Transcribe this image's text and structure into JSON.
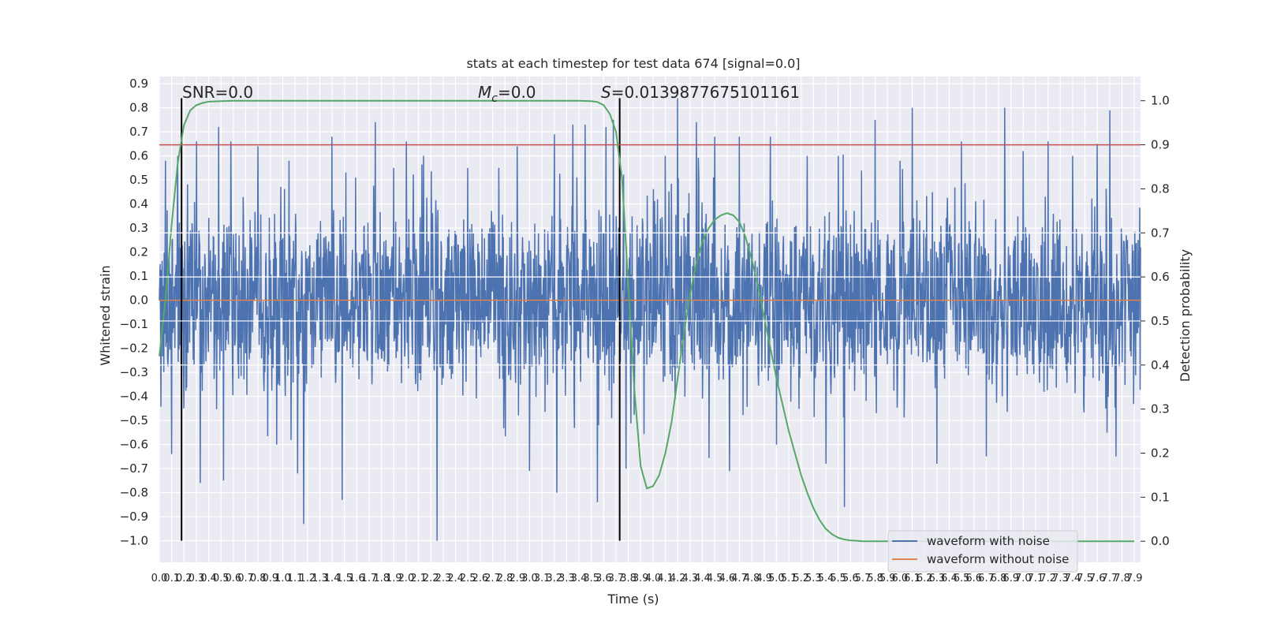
{
  "chart_data": {
    "type": "line",
    "title": "stats at each timestep for test data 674 [signal=0.0]",
    "xlabel": "Time (s)",
    "ylabel": "Whitened strain",
    "y2label": "Detection probability",
    "xlim": [
      0.0,
      7.95
    ],
    "ylim": [
      -1.09,
      0.93
    ],
    "y2lim": [
      -0.048,
      1.055
    ],
    "x_ticks": [
      0.0,
      0.1,
      0.2,
      0.3,
      0.4,
      0.5,
      0.6,
      0.7,
      0.8,
      0.9,
      1.0,
      1.1,
      1.2,
      1.3,
      1.4,
      1.5,
      1.6,
      1.7,
      1.8,
      1.9,
      2.0,
      2.1,
      2.2,
      2.3,
      2.4,
      2.5,
      2.6,
      2.7,
      2.8,
      2.9,
      3.0,
      3.1,
      3.2,
      3.3,
      3.4,
      3.5,
      3.6,
      3.7,
      3.8,
      3.9,
      4.0,
      4.1,
      4.2,
      4.3,
      4.4,
      4.5,
      4.6,
      4.7,
      4.8,
      4.9,
      5.0,
      5.1,
      5.2,
      5.3,
      5.4,
      5.5,
      5.6,
      5.7,
      5.8,
      5.9,
      6.0,
      6.1,
      6.2,
      6.3,
      6.4,
      6.5,
      6.6,
      6.7,
      6.8,
      6.9,
      7.0,
      7.1,
      7.2,
      7.3,
      7.4,
      7.5,
      7.6,
      7.7,
      7.8,
      7.9
    ],
    "x_tick_labels": [
      "0.0",
      "0.1",
      "0.2",
      "0.3",
      "0.4",
      "0.5",
      "0.6",
      "0.7",
      "0.8",
      "0.9",
      "1.0",
      "1.1",
      "1.2",
      "1.3",
      "1.4",
      "1.5",
      "1.6",
      "1.7",
      "1.8",
      "1.9",
      "2.0",
      "2.1",
      "2.2",
      "2.3",
      "2.4",
      "2.5",
      "2.6",
      "2.7",
      "2.8",
      "2.9",
      "3.0",
      "3.1",
      "3.2",
      "3.3",
      "3.4",
      "3.5",
      "3.6",
      "3.7",
      "3.8",
      "3.9",
      "4.0",
      "4.1",
      "4.2",
      "4.3",
      "4.4",
      "4.5",
      "4.6",
      "4.7",
      "4.8",
      "4.9",
      "5.0",
      "5.1",
      "5.2",
      "5.3",
      "5.4",
      "5.5",
      "5.6",
      "5.7",
      "5.8",
      "5.9",
      "6.0",
      "6.1",
      "6.2",
      "6.3",
      "6.4",
      "6.5",
      "6.6",
      "6.7",
      "6.8",
      "6.9",
      "7.0",
      "7.1",
      "7.2",
      "7.3",
      "7.4",
      "7.5",
      "7.6",
      "7.7",
      "7.8",
      "7.9"
    ],
    "y_ticks": [
      0.9,
      0.8,
      0.7,
      0.6,
      0.5,
      0.4,
      0.3,
      0.2,
      0.1,
      0.0,
      -0.1,
      -0.2,
      -0.3,
      -0.4,
      -0.5,
      -0.6,
      -0.7,
      -0.8,
      -0.9,
      -1.0
    ],
    "y_tick_labels": [
      "0.9",
      "0.8",
      "0.7",
      "0.6",
      "0.5",
      "0.4",
      "0.3",
      "0.2",
      "0.1",
      "0.0",
      "−0.1",
      "−0.2",
      "−0.3",
      "−0.4",
      "−0.5",
      "−0.6",
      "−0.7",
      "−0.8",
      "−0.9",
      "−1.0"
    ],
    "y2_ticks": [
      1.0,
      0.9,
      0.8,
      0.7,
      0.6,
      0.5,
      0.4,
      0.3,
      0.2,
      0.1,
      0.0
    ],
    "y2_tick_labels": [
      "1.0",
      "0.9",
      "0.8",
      "0.7",
      "0.6",
      "0.5",
      "0.4",
      "0.3",
      "0.2",
      "0.1",
      "0.0"
    ],
    "annotations": {
      "snr": "SNR=0.0",
      "mc_symbol": "M",
      "mc_sub": "c",
      "mc_value": "=0.0",
      "s_symbol": "S",
      "s_value": "=0.0139877675101161"
    },
    "vertical_lines_x": [
      0.18,
      3.73
    ],
    "threshold_line_y2": 0.9,
    "noise_band": {
      "x_range": [
        0.0,
        7.95
      ],
      "typical_min": -0.3,
      "typical_max": 0.3,
      "max_peak": 0.84,
      "min_peak": -1.0
    },
    "series": [
      {
        "name": "waveform with noise",
        "axis": "left",
        "color": "#4c72b0",
        "description_points": [
          [
            0.0,
            0.0
          ]
        ],
        "peaks": [
          [
            0.05,
            0.58
          ],
          [
            0.1,
            -0.64
          ],
          [
            0.15,
            0.6
          ],
          [
            0.2,
            -0.45
          ],
          [
            0.3,
            0.66
          ],
          [
            0.33,
            -0.76
          ],
          [
            0.48,
            0.72
          ],
          [
            0.52,
            -0.75
          ],
          [
            0.58,
            0.66
          ],
          [
            0.8,
            0.64
          ],
          [
            0.95,
            -0.6
          ],
          [
            1.05,
            0.58
          ],
          [
            1.12,
            -0.72
          ],
          [
            1.17,
            -0.93
          ],
          [
            1.4,
            0.68
          ],
          [
            1.48,
            -0.83
          ],
          [
            1.75,
            0.74
          ],
          [
            1.9,
            0.55
          ],
          [
            2.0,
            0.66
          ],
          [
            2.25,
            -1.0
          ],
          [
            2.5,
            0.55
          ],
          [
            2.75,
            0.55
          ],
          [
            2.9,
            0.64
          ],
          [
            3.0,
            -0.71
          ],
          [
            3.2,
            0.69
          ],
          [
            3.22,
            -0.8
          ],
          [
            3.35,
            0.73
          ],
          [
            3.45,
            0.73
          ],
          [
            3.55,
            -0.84
          ],
          [
            3.62,
            0.72
          ],
          [
            3.68,
            0.75
          ],
          [
            3.78,
            -0.7
          ],
          [
            4.1,
            0.6
          ],
          [
            4.2,
            0.84
          ],
          [
            4.35,
            0.74
          ],
          [
            4.5,
            0.68
          ],
          [
            4.62,
            -0.71
          ],
          [
            4.7,
            0.68
          ],
          [
            4.95,
            0.68
          ],
          [
            5.0,
            -0.6
          ],
          [
            5.25,
            0.6
          ],
          [
            5.4,
            -0.68
          ],
          [
            5.5,
            0.6
          ],
          [
            5.55,
            -0.86
          ],
          [
            5.8,
            0.75
          ],
          [
            6.0,
            0.58
          ],
          [
            6.1,
            0.8
          ],
          [
            6.3,
            -0.68
          ],
          [
            6.5,
            0.66
          ],
          [
            6.7,
            -0.65
          ],
          [
            6.85,
            0.8
          ],
          [
            7.0,
            0.62
          ],
          [
            7.2,
            0.66
          ],
          [
            7.4,
            0.6
          ],
          [
            7.6,
            0.65
          ],
          [
            7.7,
            0.79
          ],
          [
            7.75,
            -0.65
          ]
        ]
      },
      {
        "name": "waveform without noise",
        "axis": "left",
        "color": "#dd8452",
        "x": [
          0.0,
          7.95
        ],
        "y": [
          0.0,
          0.0
        ]
      },
      {
        "name": "detection probability",
        "axis": "right",
        "color": "#55a868",
        "x": [
          0.0,
          0.05,
          0.1,
          0.15,
          0.2,
          0.25,
          0.3,
          0.35,
          0.4,
          0.5,
          0.6,
          0.8,
          1.0,
          2.0,
          3.0,
          3.4,
          3.5,
          3.55,
          3.6,
          3.65,
          3.7,
          3.75,
          3.8,
          3.85,
          3.9,
          3.95,
          4.0,
          4.05,
          4.1,
          4.15,
          4.2,
          4.25,
          4.3,
          4.35,
          4.4,
          4.45,
          4.5,
          4.55,
          4.6,
          4.65,
          4.7,
          4.75,
          4.8,
          4.85,
          4.9,
          4.95,
          5.0,
          5.05,
          5.1,
          5.15,
          5.2,
          5.25,
          5.3,
          5.35,
          5.4,
          5.45,
          5.5,
          5.55,
          5.6,
          5.65,
          5.7,
          5.75,
          5.8,
          5.85,
          5.9,
          5.95,
          6.0,
          6.05,
          6.1,
          6.2,
          6.4,
          6.6,
          7.0,
          7.5,
          7.9
        ],
        "y": [
          0.42,
          0.55,
          0.72,
          0.86,
          0.945,
          0.978,
          0.99,
          0.995,
          0.998,
          0.999,
          1.0,
          1.0,
          1.0,
          1.0,
          1.0,
          1.0,
          0.999,
          0.997,
          0.99,
          0.97,
          0.93,
          0.82,
          0.58,
          0.34,
          0.17,
          0.12,
          0.125,
          0.15,
          0.2,
          0.27,
          0.37,
          0.47,
          0.56,
          0.63,
          0.68,
          0.71,
          0.73,
          0.74,
          0.745,
          0.74,
          0.725,
          0.69,
          0.64,
          0.58,
          0.51,
          0.44,
          0.37,
          0.31,
          0.25,
          0.2,
          0.15,
          0.11,
          0.075,
          0.048,
          0.028,
          0.016,
          0.008,
          0.004,
          0.002,
          0.001,
          0.0,
          0.0,
          0.0,
          0.0,
          0.0,
          0.0,
          0.0,
          0.0,
          0.0,
          0.0,
          0.0,
          0.0,
          0.0,
          0.0,
          0.0
        ]
      },
      {
        "name": "threshold",
        "axis": "right",
        "color": "#c44e52",
        "x": [
          0.0,
          7.95
        ],
        "y": [
          0.9,
          0.9
        ]
      }
    ],
    "legend": {
      "position": "lower-right",
      "entries": [
        {
          "label": "waveform with noise",
          "color": "#4c72b0"
        },
        {
          "label": "waveform without noise",
          "color": "#dd8452"
        }
      ]
    },
    "grid": true,
    "style": {
      "axes_bg": "#eaeaf2",
      "grid_color": "#ffffff"
    }
  }
}
